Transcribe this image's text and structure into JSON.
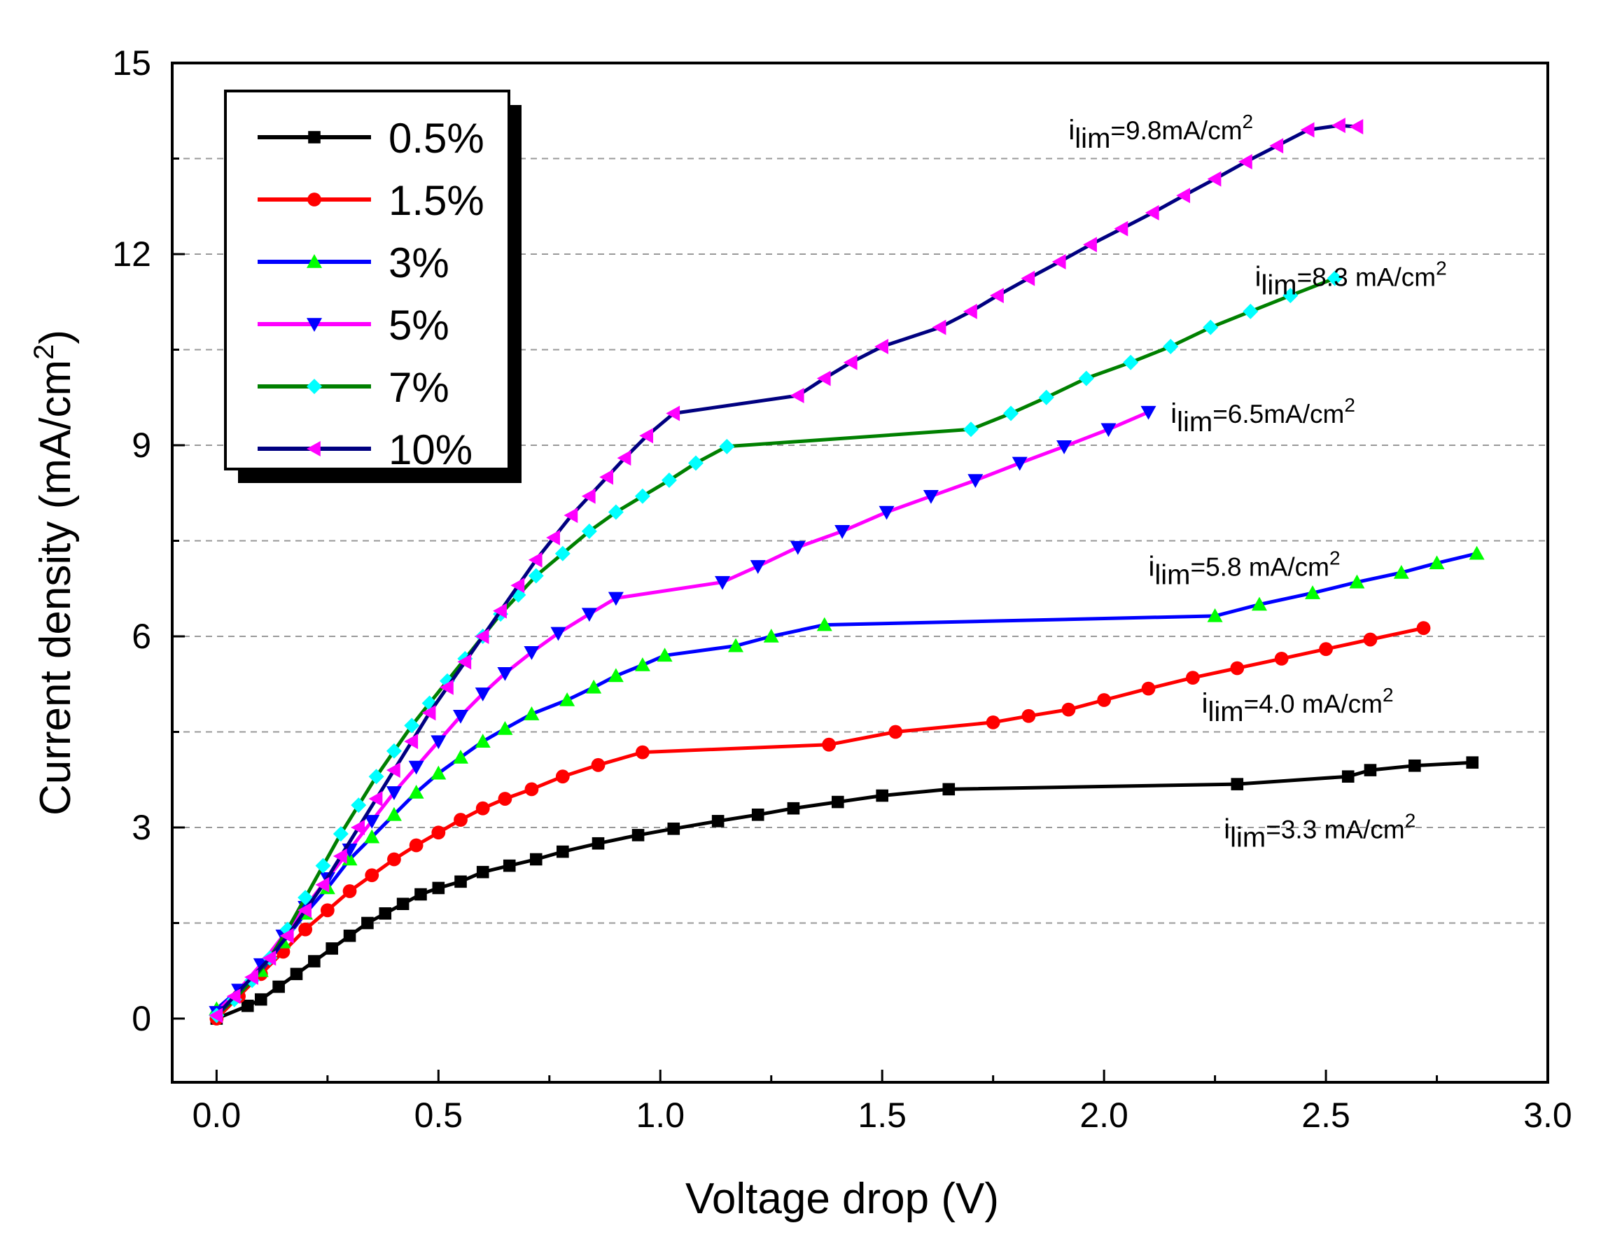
{
  "chart_data": {
    "type": "line",
    "xlabel": "Voltage drop (V)",
    "ylabel": "Current density (mA/cm",
    "ylabel_sup": "2",
    "ylabel_end": ")",
    "xlim": [
      -0.1,
      3.0
    ],
    "ylim": [
      -1.0,
      15.0
    ],
    "xticks": [
      0.0,
      0.5,
      1.0,
      1.5,
      2.0,
      2.5,
      3.0
    ],
    "xtick_labels": [
      "0.0",
      "0.5",
      "1.0",
      "1.5",
      "2.0",
      "2.5",
      "3.0"
    ],
    "yticks": [
      0,
      3,
      6,
      9,
      12,
      15
    ],
    "ytick_labels": [
      "0",
      "3",
      "6",
      "9",
      "12",
      "15"
    ],
    "gridlines_y": [
      1.5,
      3,
      4.5,
      6,
      7.5,
      9,
      10.5,
      12,
      13.5
    ],
    "legend_position": "top-left",
    "series": [
      {
        "name": "0.5%",
        "color": "#000000",
        "marker": "square",
        "x": [
          0.0,
          0.07,
          0.1,
          0.14,
          0.18,
          0.22,
          0.26,
          0.3,
          0.34,
          0.38,
          0.42,
          0.46,
          0.5,
          0.55,
          0.6,
          0.66,
          0.72,
          0.78,
          0.86,
          0.95,
          1.03,
          1.13,
          1.22,
          1.3,
          1.4,
          1.5,
          1.65,
          2.3,
          2.55,
          2.6,
          2.7,
          2.83
        ],
        "y": [
          0.0,
          0.2,
          0.3,
          0.5,
          0.7,
          0.9,
          1.1,
          1.3,
          1.5,
          1.65,
          1.8,
          1.95,
          2.05,
          2.15,
          2.3,
          2.4,
          2.5,
          2.62,
          2.75,
          2.88,
          2.98,
          3.1,
          3.2,
          3.3,
          3.4,
          3.5,
          3.6,
          3.68,
          3.8,
          3.9,
          3.97,
          4.02
        ]
      },
      {
        "name": "1.5%",
        "color": "#ff0000",
        "marker": "circle",
        "x": [
          0.0,
          0.05,
          0.1,
          0.15,
          0.2,
          0.25,
          0.3,
          0.35,
          0.4,
          0.45,
          0.5,
          0.55,
          0.6,
          0.65,
          0.71,
          0.78,
          0.86,
          0.96,
          1.38,
          1.53,
          1.75,
          1.83,
          1.92,
          2.0,
          2.1,
          2.2,
          2.3,
          2.4,
          2.5,
          2.6,
          2.72
        ],
        "y": [
          0.0,
          0.35,
          0.7,
          1.05,
          1.4,
          1.7,
          2.0,
          2.25,
          2.5,
          2.72,
          2.92,
          3.12,
          3.3,
          3.45,
          3.6,
          3.8,
          3.98,
          4.18,
          4.3,
          4.5,
          4.65,
          4.75,
          4.85,
          5.0,
          5.18,
          5.35,
          5.5,
          5.65,
          5.8,
          5.95,
          6.13
        ]
      },
      {
        "name": "3%",
        "color": "#0000ff",
        "marker": "triangle-up",
        "marker_color": "#00ff00",
        "x": [
          0.0,
          0.1,
          0.15,
          0.2,
          0.25,
          0.3,
          0.35,
          0.4,
          0.45,
          0.5,
          0.55,
          0.6,
          0.65,
          0.71,
          0.79,
          0.85,
          0.9,
          0.96,
          1.01,
          1.17,
          1.25,
          1.37,
          2.25,
          2.35,
          2.47,
          2.57,
          2.67,
          2.75,
          2.84
        ],
        "y": [
          0.15,
          0.75,
          1.2,
          1.65,
          2.05,
          2.5,
          2.85,
          3.2,
          3.55,
          3.85,
          4.1,
          4.35,
          4.55,
          4.78,
          5.0,
          5.2,
          5.38,
          5.55,
          5.7,
          5.85,
          6.0,
          6.18,
          6.32,
          6.5,
          6.68,
          6.85,
          7.0,
          7.15,
          7.3
        ]
      },
      {
        "name": "5%",
        "color": "#ff00ff",
        "marker": "triangle-down",
        "marker_color": "#0000ff",
        "x": [
          0.0,
          0.05,
          0.1,
          0.15,
          0.2,
          0.25,
          0.3,
          0.35,
          0.4,
          0.45,
          0.5,
          0.55,
          0.6,
          0.65,
          0.71,
          0.77,
          0.84,
          0.9,
          1.14,
          1.22,
          1.31,
          1.41,
          1.51,
          1.61,
          1.71,
          1.81,
          1.91,
          2.01,
          2.1
        ],
        "y": [
          0.1,
          0.45,
          0.85,
          1.3,
          1.75,
          2.2,
          2.65,
          3.1,
          3.55,
          3.95,
          4.35,
          4.75,
          5.1,
          5.42,
          5.75,
          6.05,
          6.35,
          6.6,
          6.85,
          7.1,
          7.4,
          7.65,
          7.95,
          8.2,
          8.45,
          8.72,
          8.98,
          9.25,
          9.52
        ]
      },
      {
        "name": "7%",
        "color": "#008000",
        "marker": "diamond",
        "marker_color": "#00ffff",
        "x": [
          0.0,
          0.04,
          0.08,
          0.12,
          0.16,
          0.2,
          0.24,
          0.28,
          0.32,
          0.36,
          0.4,
          0.44,
          0.48,
          0.52,
          0.56,
          0.6,
          0.64,
          0.68,
          0.72,
          0.78,
          0.84,
          0.9,
          0.96,
          1.02,
          1.08,
          1.15,
          1.7,
          1.79,
          1.87,
          1.96,
          2.06,
          2.15,
          2.24,
          2.33,
          2.42,
          2.52
        ],
        "y": [
          0.05,
          0.3,
          0.6,
          0.95,
          1.4,
          1.9,
          2.4,
          2.9,
          3.35,
          3.8,
          4.2,
          4.6,
          4.95,
          5.3,
          5.65,
          6.0,
          6.35,
          6.65,
          6.95,
          7.3,
          7.65,
          7.95,
          8.2,
          8.45,
          8.72,
          8.98,
          9.25,
          9.5,
          9.75,
          10.05,
          10.3,
          10.55,
          10.85,
          11.1,
          11.35,
          11.62
        ]
      },
      {
        "name": "10%",
        "color": "#000080",
        "marker": "triangle-left",
        "marker_color": "#ff00ff",
        "x": [
          0.0,
          0.04,
          0.08,
          0.12,
          0.16,
          0.2,
          0.24,
          0.28,
          0.32,
          0.36,
          0.4,
          0.44,
          0.48,
          0.52,
          0.56,
          0.6,
          0.64,
          0.68,
          0.72,
          0.76,
          0.8,
          0.84,
          0.88,
          0.92,
          0.97,
          1.03,
          1.31,
          1.37,
          1.43,
          1.5,
          1.63,
          1.7,
          1.76,
          1.83,
          1.9,
          1.97,
          2.04,
          2.11,
          2.18,
          2.25,
          2.32,
          2.39,
          2.46,
          2.53,
          2.57
        ],
        "y": [
          0.05,
          0.35,
          0.65,
          0.95,
          1.3,
          1.7,
          2.1,
          2.55,
          3.0,
          3.45,
          3.9,
          4.35,
          4.8,
          5.2,
          5.6,
          6.0,
          6.4,
          6.8,
          7.2,
          7.55,
          7.9,
          8.2,
          8.5,
          8.8,
          9.15,
          9.5,
          9.78,
          10.05,
          10.3,
          10.55,
          10.85,
          11.1,
          11.35,
          11.62,
          11.88,
          12.15,
          12.4,
          12.65,
          12.92,
          13.18,
          13.45,
          13.7,
          13.95,
          14.02,
          14.0
        ]
      }
    ],
    "annotations": [
      {
        "prefix": "i",
        "sub": "lim",
        "text": "=9.8mA/cm",
        "sup": "2",
        "x": 1.92,
        "y": 13.8
      },
      {
        "prefix": "i",
        "sub": "lim",
        "text": "=8.3 mA/cm",
        "sup": "2",
        "x": 2.34,
        "y": 11.5
      },
      {
        "prefix": "i",
        "sub": "lim",
        "text": "=6.5mA/cm",
        "sup": "2",
        "x": 2.15,
        "y": 9.35
      },
      {
        "prefix": "i",
        "sub": "lim",
        "text": "=5.8 mA/cm",
        "sup": "2",
        "x": 2.1,
        "y": 6.95
      },
      {
        "prefix": "i",
        "sub": "lim",
        "text": "=4.0 mA/cm",
        "sup": "2",
        "x": 2.22,
        "y": 4.8
      },
      {
        "prefix": "i",
        "sub": "lim",
        "text": "=3.3 mA/cm",
        "sup": "2",
        "x": 2.27,
        "y": 2.83
      }
    ]
  }
}
